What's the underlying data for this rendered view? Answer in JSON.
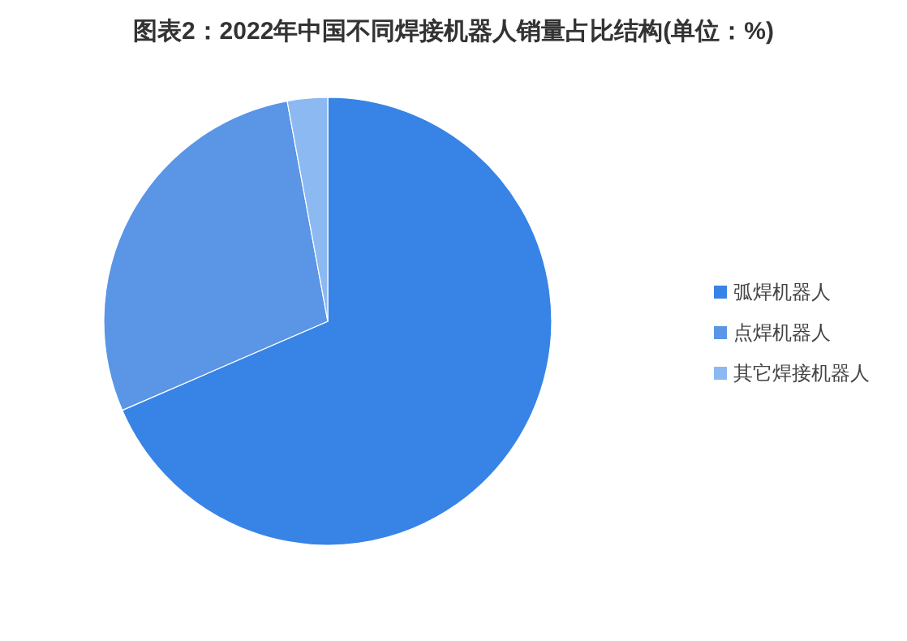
{
  "chart_data": {
    "type": "pie",
    "title": "图表2：2022年中国不同焊接机器人销量占比结构(单位：%)",
    "categories": [
      "弧焊机器人",
      "点焊机器人",
      "其它焊接机器人"
    ],
    "values": [
      68.5,
      28.6,
      2.9
    ],
    "colors": [
      "#3784e6",
      "#5a95e6",
      "#8cb9f2"
    ],
    "legend": "right"
  }
}
